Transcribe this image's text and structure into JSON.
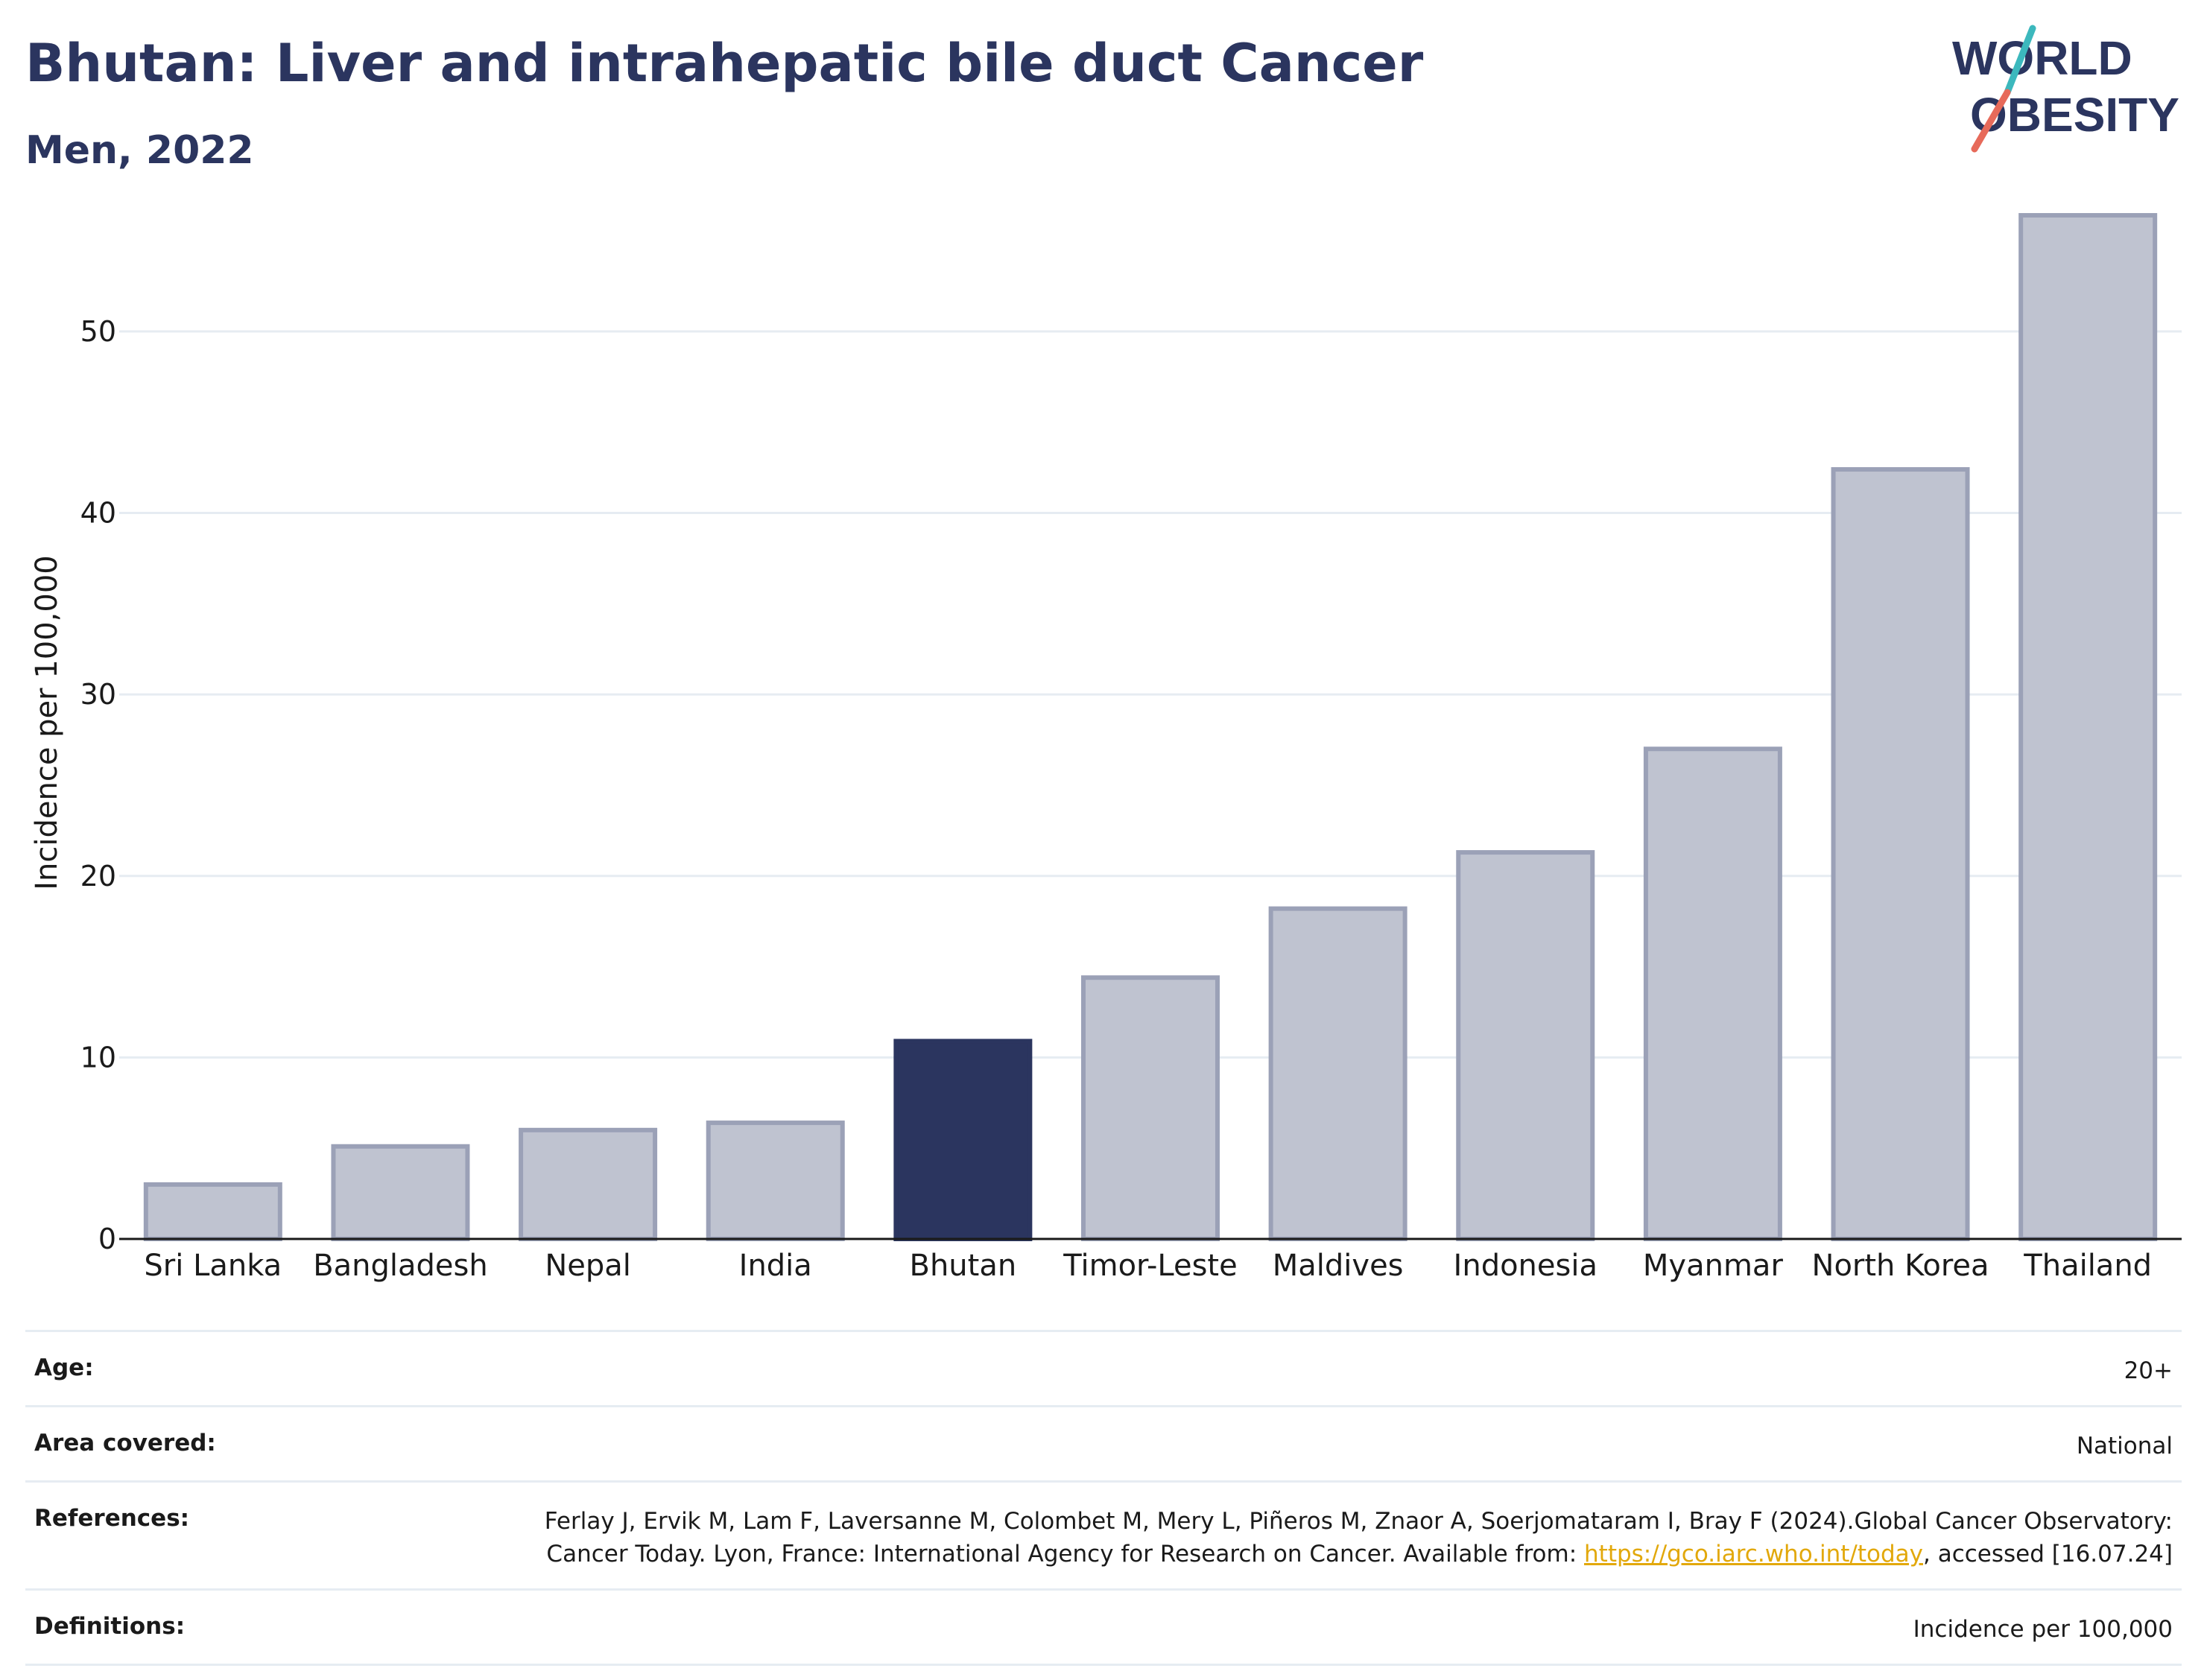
{
  "title": "Bhutan: Liver and intrahepatic bile duct Cancer",
  "subtitle": "Men, 2022",
  "logo": {
    "line1": "WORLD",
    "line2": "OBESITY"
  },
  "colors": {
    "highlight": "#2b355f",
    "bar": "#bfc3d0",
    "bar_border": "#9ba1b7",
    "grid": "#e6ecf2",
    "logo_text": "#2b355f",
    "logo_slash_teal": "#3cb8bd",
    "logo_slash_coral": "#e76a5a",
    "link": "#e2a80b"
  },
  "chart_data": {
    "type": "bar",
    "categories": [
      "Sri Lanka",
      "Bangladesh",
      "Nepal",
      "India",
      "Bhutan",
      "Timor-Leste",
      "Maldives",
      "Indonesia",
      "Myanmar",
      "North Korea",
      "Thailand"
    ],
    "values": [
      3.0,
      5.1,
      6.0,
      6.4,
      10.9,
      14.4,
      18.2,
      21.3,
      27.0,
      42.4,
      56.4
    ],
    "highlight": "Bhutan",
    "ylabel": "Incidence per 100,000",
    "xlabel": "",
    "ylim": [
      0,
      58
    ],
    "yticks": [
      0,
      10,
      20,
      30,
      40,
      50
    ],
    "grid": true
  },
  "info": {
    "age_label": "Age:",
    "age_value": "20+",
    "area_label": "Area covered:",
    "area_value": "National",
    "references_label": "References:",
    "references_text_1": "Ferlay J, Ervik M, Lam F, Laversanne M, Colombet M, Mery L, Piñeros M, Znaor A, Soerjomataram I, Bray F (2024).Global Cancer Observatory: Cancer Today. Lyon, France: International Agency for Research on Cancer. Available from: ",
    "references_link": "https://gco.iarc.who.int/today",
    "references_text_2": ", accessed [16.07.24]",
    "definitions_label": "Definitions:",
    "definitions_value": "Incidence per 100,000"
  }
}
